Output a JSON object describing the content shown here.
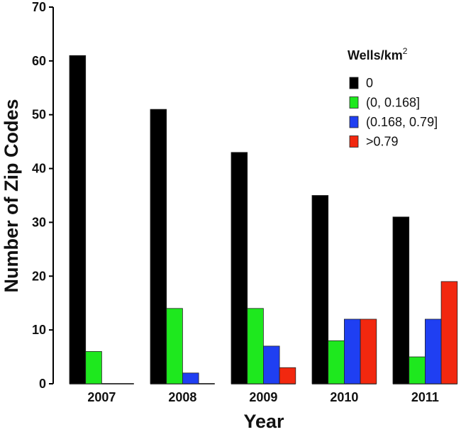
{
  "chart_data": {
    "type": "bar",
    "xlabel": "Year",
    "ylabel": "Number of Zip Codes",
    "ylim": [
      0,
      70
    ],
    "yticks": [
      0,
      10,
      20,
      30,
      40,
      50,
      60,
      70
    ],
    "categories": [
      "2007",
      "2008",
      "2009",
      "2010",
      "2011"
    ],
    "legend": {
      "title_main": "Wells/km",
      "title_sup": "2",
      "placement": "top-right"
    },
    "grid": false,
    "series": [
      {
        "name": "0",
        "color": "#000000",
        "values": [
          61,
          51,
          43,
          35,
          31
        ]
      },
      {
        "name": "(0, 0.168]",
        "color": "#1ee81e",
        "values": [
          6,
          14,
          14,
          8,
          5
        ]
      },
      {
        "name": "(0.168, 0.79]",
        "color": "#1f3ff2",
        "values": [
          0,
          2,
          7,
          12,
          12
        ]
      },
      {
        "name": ">0.79",
        "color": "#f2280f",
        "values": [
          0,
          0,
          3,
          12,
          19
        ]
      }
    ]
  }
}
